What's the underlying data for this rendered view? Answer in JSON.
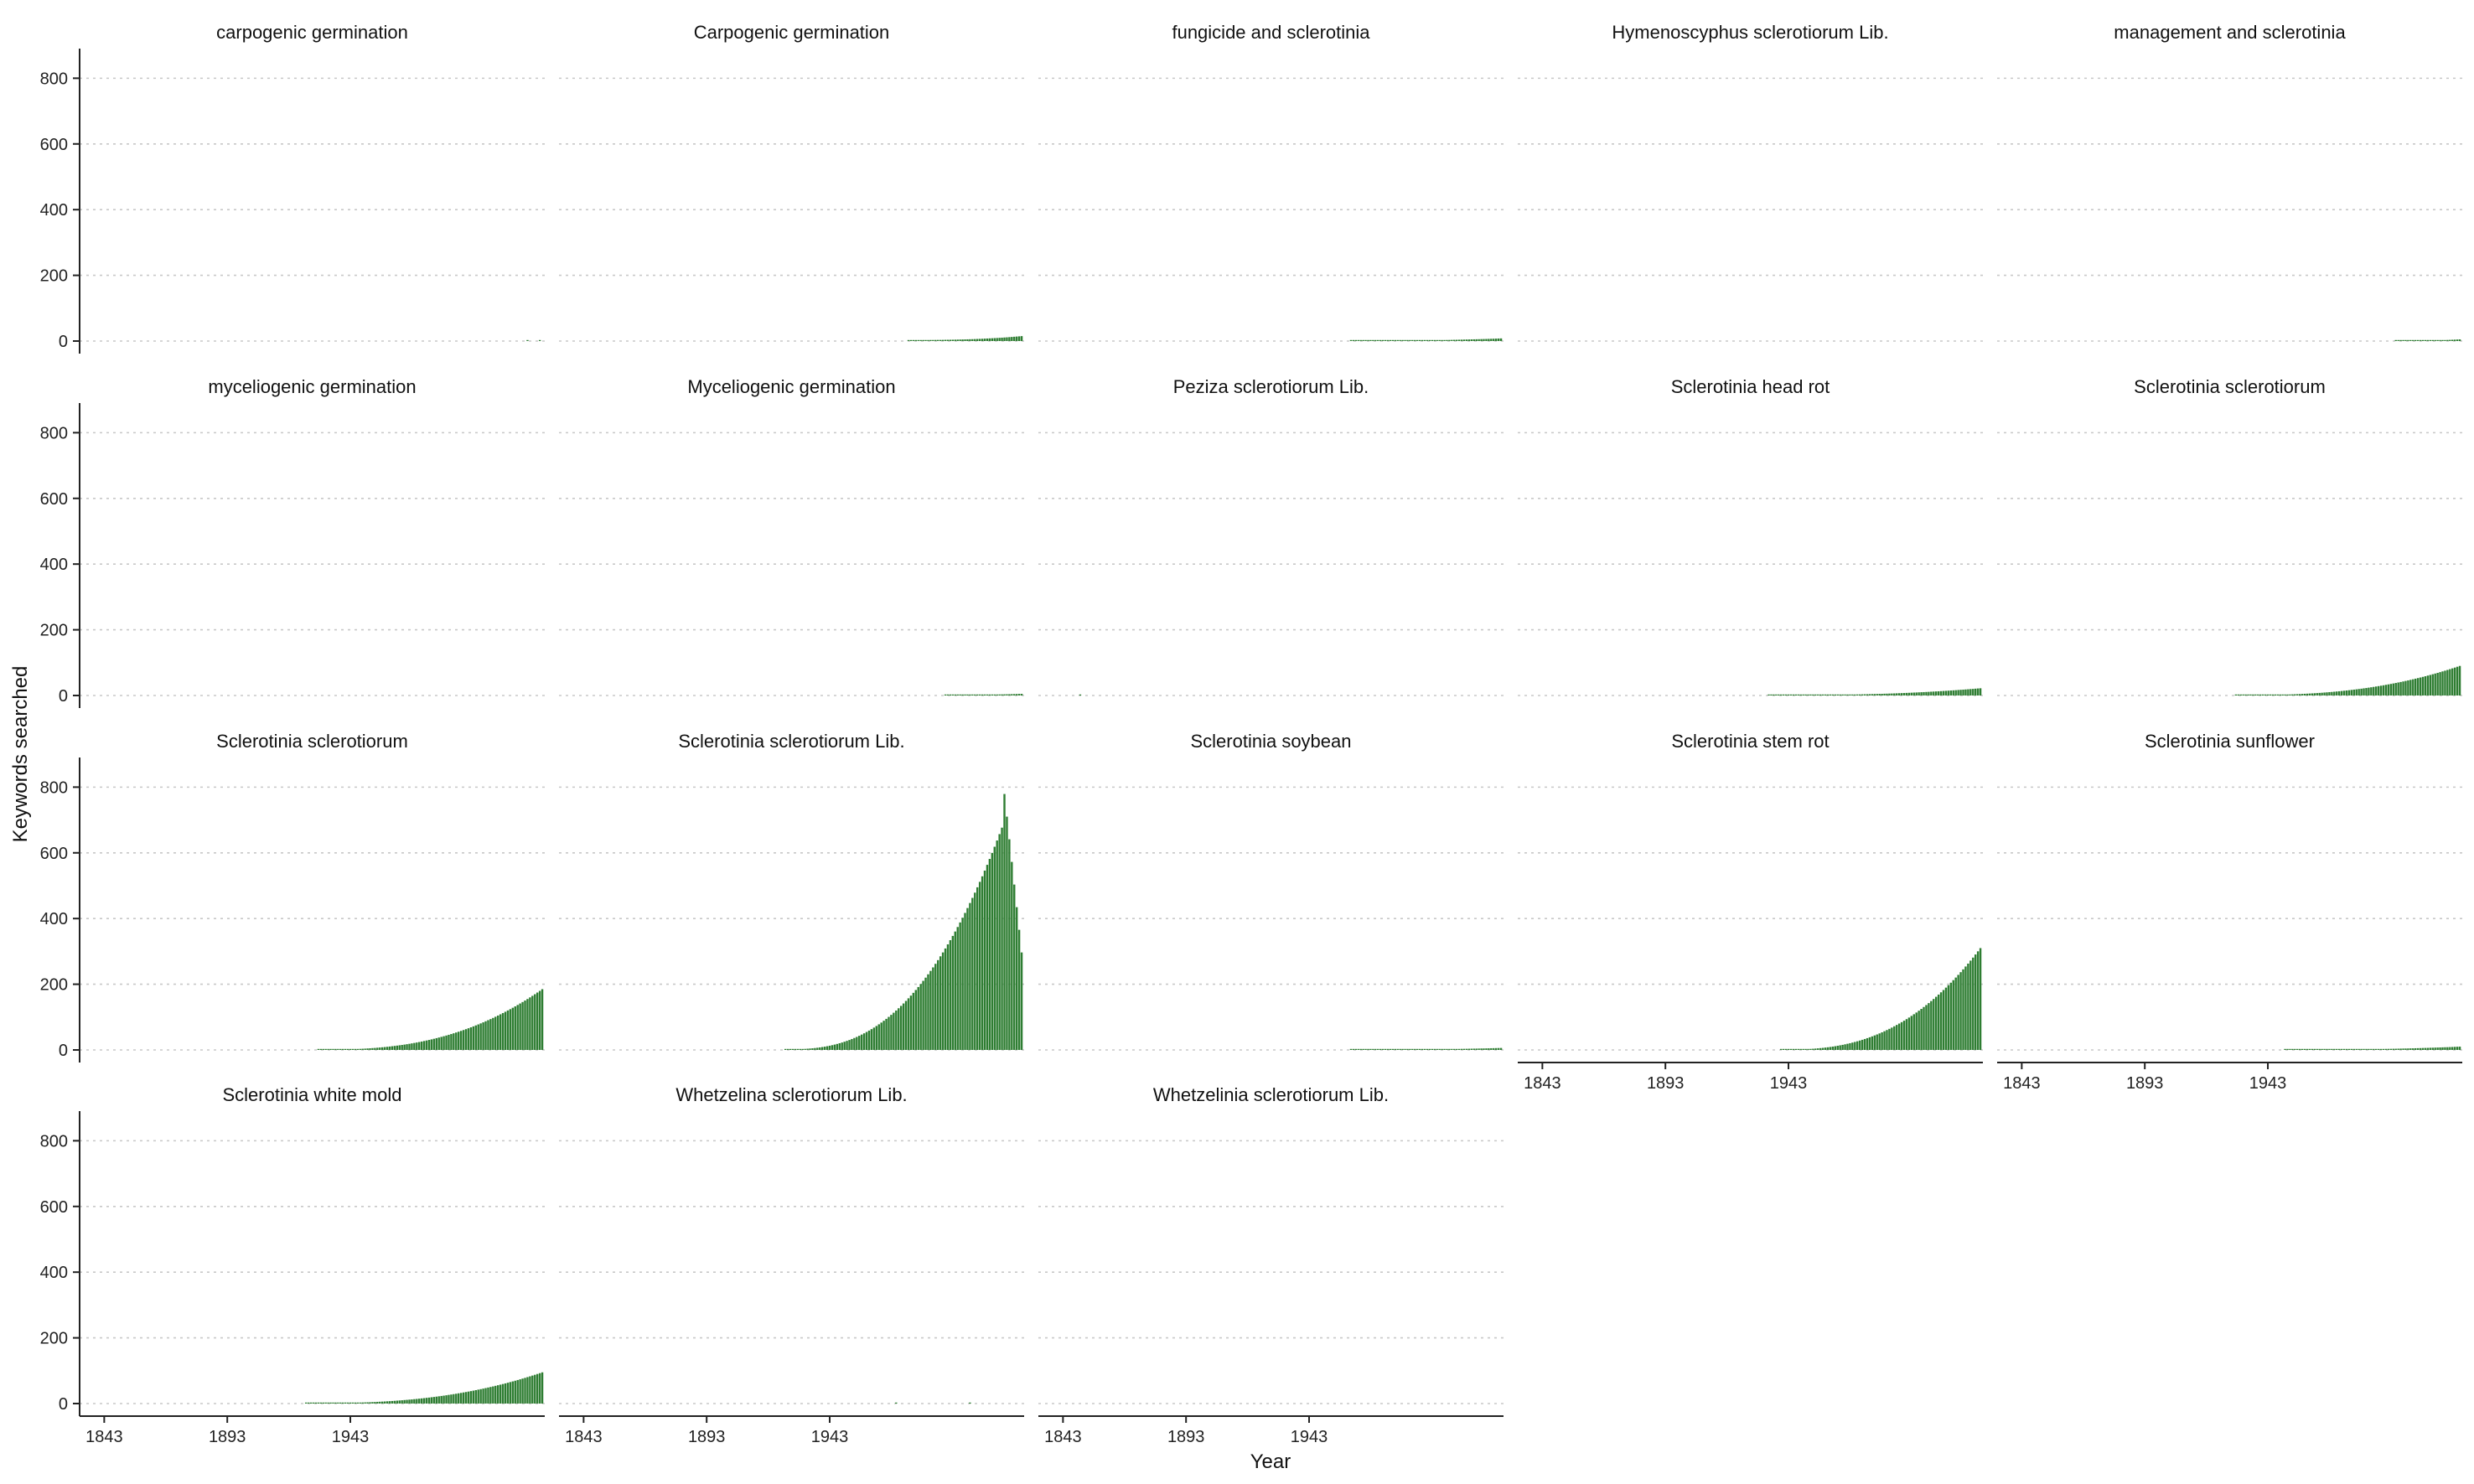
{
  "chart_data": {
    "type": "bar",
    "xlabel": "Year",
    "ylabel": "Keywords searched",
    "ylim": [
      0,
      880
    ],
    "xlim": [
      1833,
      2022
    ],
    "y_ticks": [
      0,
      200,
      400,
      600,
      800
    ],
    "x_ticks": [
      1843,
      1893,
      1943
    ],
    "bar_color": "#2e7d32",
    "grid": "horizontal dotted",
    "layout": {
      "columns": 5,
      "rows": 4
    },
    "panels": [
      {
        "title": "carpogenic germination",
        "years": [
          2015,
          2020
        ],
        "values": [
          1,
          1
        ]
      },
      {
        "title": "Carpogenic germination",
        "years": [
          1975,
          2021
        ],
        "from": 3,
        "to": 15
      },
      {
        "title": "fungicide and sclerotinia",
        "years": [
          1960,
          2021
        ],
        "from": 1,
        "to": 8
      },
      {
        "title": "Hymenoscyphus sclerotiorum Lib.",
        "years": [],
        "values": []
      },
      {
        "title": "management and sclerotinia",
        "years": [
          1995,
          2021
        ],
        "from": 1,
        "to": 5
      },
      {
        "title": "myceliogenic germination",
        "years": [],
        "values": []
      },
      {
        "title": "Myceliogenic germination",
        "years": [
          1990,
          2021
        ],
        "from": 2,
        "to": 5
      },
      {
        "title": "Peziza sclerotiorum Lib.",
        "years": [
          1850
        ],
        "values": [
          1
        ]
      },
      {
        "title": "Sclerotinia head rot",
        "years": [
          1935,
          2021
        ],
        "from": 1,
        "to": 22
      },
      {
        "title": "Sclerotinia sclerotiorum",
        "years": [
          1930,
          2021
        ],
        "from": 1,
        "to": 90
      },
      {
        "title": "Sclerotinia sclerotiorum",
        "years": [
          1930,
          2021
        ],
        "from": 1,
        "to": 185
      },
      {
        "title": "Sclerotinia sclerotiorum Lib.",
        "years": [
          1925,
          2021
        ],
        "from": 2,
        "to": 848
      },
      {
        "title": "Sclerotinia soybean",
        "years": [
          1960,
          2021
        ],
        "from": 1,
        "to": 6
      },
      {
        "title": "Sclerotinia stem rot",
        "years": [
          1940,
          2021
        ],
        "from": 1,
        "to": 310
      },
      {
        "title": "Sclerotinia sunflower",
        "years": [
          1950,
          2021
        ],
        "from": 1,
        "to": 10
      },
      {
        "title": "Sclerotinia white mold",
        "years": [
          1925,
          2021
        ],
        "from": 1,
        "to": 95
      },
      {
        "title": "Whetzelina sclerotiorum Lib.",
        "years": [
          1970,
          2000
        ],
        "values": [
          1,
          2
        ]
      },
      {
        "title": "Whetzelinia sclerotiorum Lib.",
        "years": [],
        "values": []
      }
    ]
  }
}
